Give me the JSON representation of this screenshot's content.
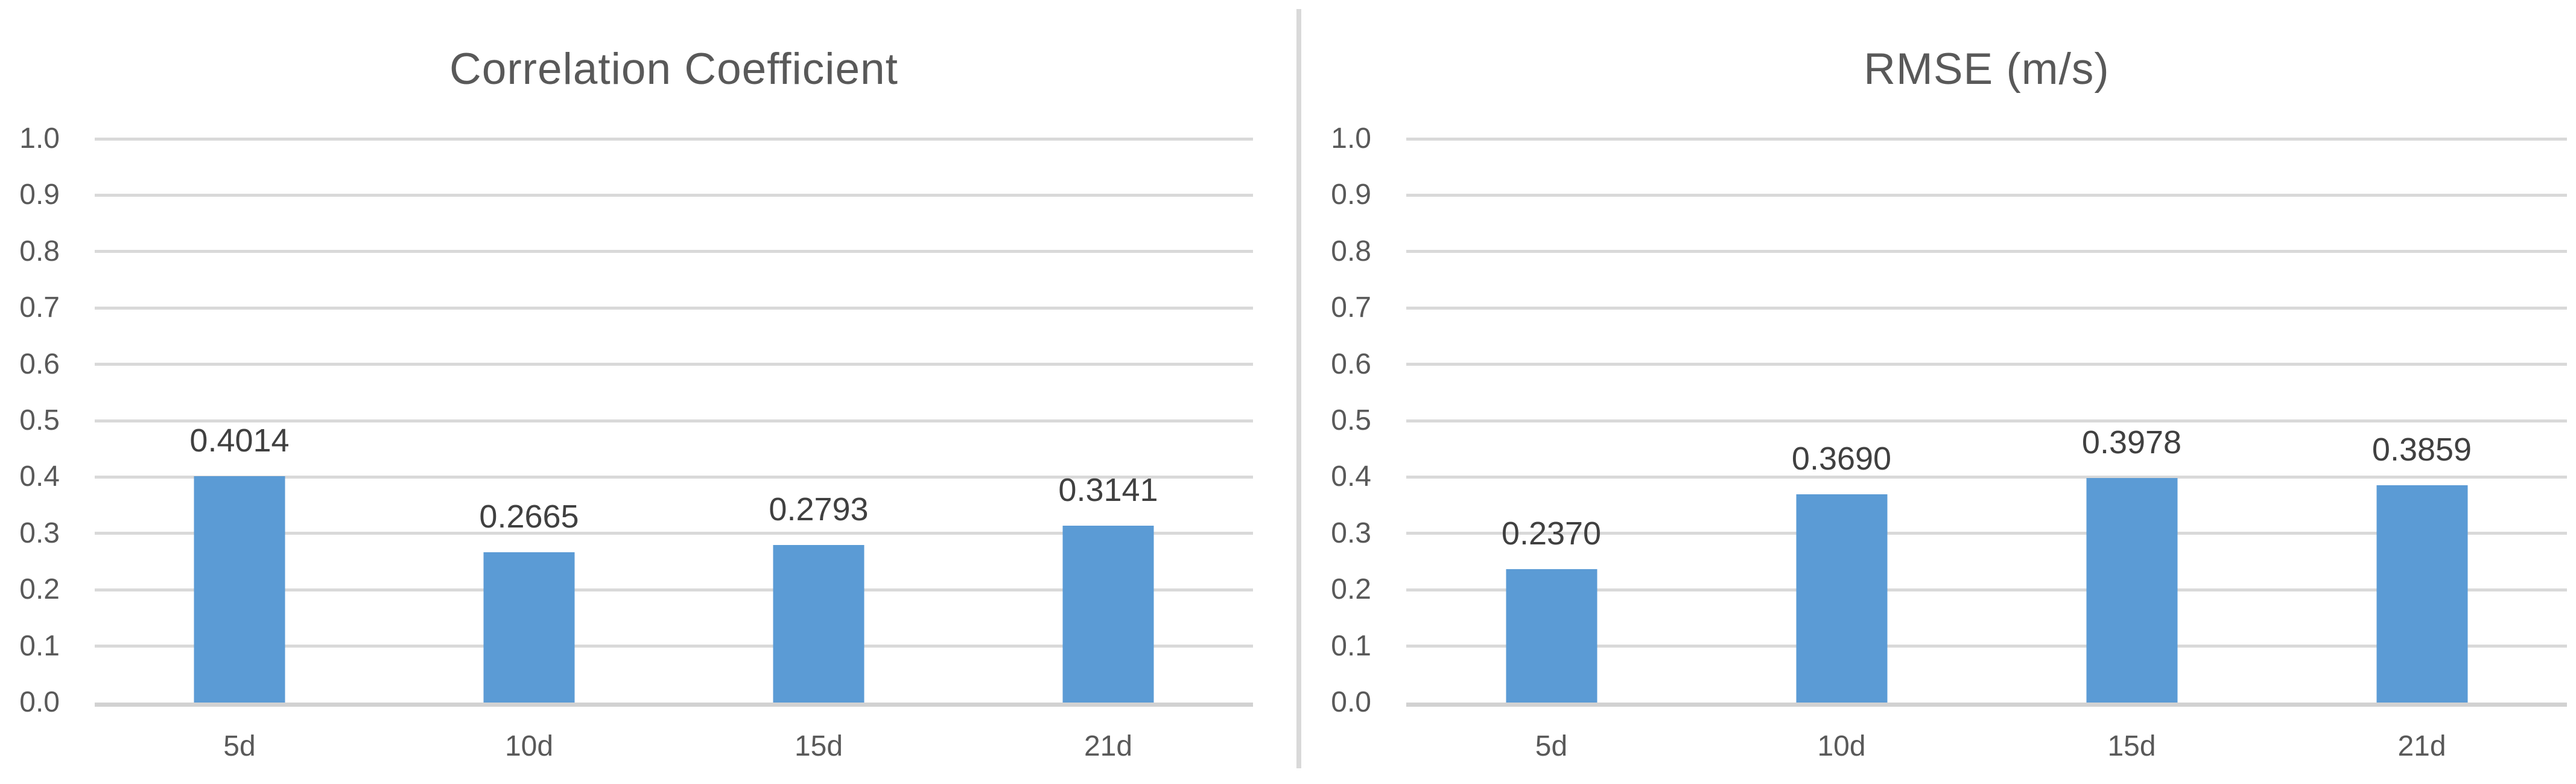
{
  "figure": {
    "background": "#FFFFFF"
  },
  "colors": {
    "bar": "#5B9BD5",
    "gridline": "#D9D9D9",
    "axis_baseline": "#D2D2D2",
    "divider": "#D9D9D9",
    "title_text": "#595959",
    "axis_text": "#595959",
    "value_text": "#404040"
  },
  "chart_data": [
    {
      "type": "bar",
      "title": "Correlation Coefficient",
      "categories": [
        "5d",
        "10d",
        "15d",
        "21d"
      ],
      "values": [
        0.4014,
        0.2665,
        0.2793,
        0.3141
      ],
      "value_labels": [
        "0.4014",
        "0.2665",
        "0.2793",
        "0.3141"
      ],
      "xlabel": "",
      "ylabel": "",
      "ylim": [
        0.0,
        1.0
      ],
      "ytick_step": 0.1,
      "ytick_labels": [
        "1.0",
        "0.9",
        "0.8",
        "0.7",
        "0.6",
        "0.5",
        "0.4",
        "0.3",
        "0.2",
        "0.1",
        "0.0"
      ],
      "grid": true,
      "legend": "none",
      "bar_color": "#5B9BD5"
    },
    {
      "type": "bar",
      "title": "RMSE (m/s)",
      "categories": [
        "5d",
        "10d",
        "15d",
        "21d"
      ],
      "values": [
        0.237,
        0.369,
        0.3978,
        0.3859
      ],
      "value_labels": [
        "0.2370",
        "0.3690",
        "0.3978",
        "0.3859"
      ],
      "xlabel": "",
      "ylabel": "",
      "ylim": [
        0.0,
        1.0
      ],
      "ytick_step": 0.1,
      "ytick_labels": [
        "1.0",
        "0.9",
        "0.8",
        "0.7",
        "0.6",
        "0.5",
        "0.4",
        "0.3",
        "0.2",
        "0.1",
        "0.0"
      ],
      "grid": true,
      "legend": "none",
      "bar_color": "#5B9BD5"
    }
  ]
}
